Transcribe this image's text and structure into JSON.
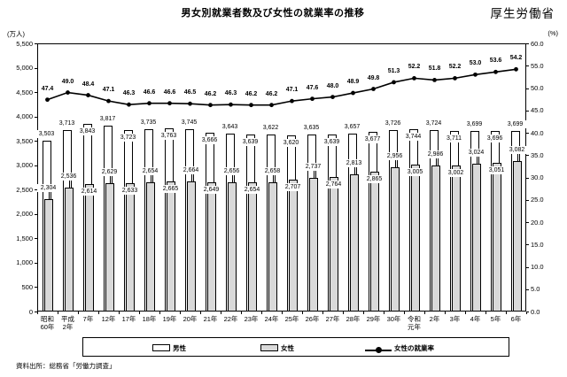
{
  "header": {
    "title": "男女別就業者数及び女性の就業率の推移",
    "agency": "厚生労働省"
  },
  "axes": {
    "left_unit": "(万人)",
    "right_unit": "(%)",
    "left_ticks": [
      "5,500",
      "5,000",
      "4,500",
      "4,000",
      "3,500",
      "3,000",
      "2,500",
      "2,000",
      "1,500",
      "1,000",
      "500",
      "0"
    ],
    "right_ticks": [
      "60.0",
      "55.0",
      "50.0",
      "45.0",
      "40.0",
      "35.0",
      "30.0",
      "25.0",
      "20.0",
      "15.0",
      "10.0",
      "5.0",
      "0.0"
    ]
  },
  "legend": {
    "male_label": "男性",
    "female_label": "女性",
    "rate_label": "女性の就業率"
  },
  "source_note": "資料出所：総務省「労働力調査」",
  "colors": {
    "male_bar": "#ffffff",
    "female_bar": "#d9d9d9",
    "line": "#000000",
    "border": "#000000"
  },
  "chart_data": {
    "type": "bar",
    "subtype": "grouped bars with overlaid line on secondary axis",
    "title": "男女別就業者数及び女性の就業率の推移",
    "categories": [
      "昭和60年",
      "平成2年",
      "7年",
      "12年",
      "17年",
      "18年",
      "19年",
      "20年",
      "21年",
      "22年",
      "23年",
      "24年",
      "25年",
      "26年",
      "27年",
      "28年",
      "29年",
      "30年",
      "令和元年",
      "2年",
      "3年",
      "4年",
      "5年",
      "6年"
    ],
    "category_label_lines": [
      [
        "昭和",
        "60年"
      ],
      [
        "平成",
        "2年"
      ],
      [
        "7年"
      ],
      [
        "12年"
      ],
      [
        "17年"
      ],
      [
        "18年"
      ],
      [
        "19年"
      ],
      [
        "20年"
      ],
      [
        "21年"
      ],
      [
        "22年"
      ],
      [
        "23年"
      ],
      [
        "24年"
      ],
      [
        "25年"
      ],
      [
        "26年"
      ],
      [
        "27年"
      ],
      [
        "28年"
      ],
      [
        "29年"
      ],
      [
        "30年"
      ],
      [
        "令和",
        "元年"
      ],
      [
        "2年"
      ],
      [
        "3年"
      ],
      [
        "4年"
      ],
      [
        "5年"
      ],
      [
        "6年"
      ]
    ],
    "series": [
      {
        "name": "男性",
        "type": "bar",
        "axis": "left",
        "color": "#ffffff",
        "values": [
          3503,
          3713,
          3843,
          3817,
          3723,
          3735,
          3763,
          3745,
          3666,
          3643,
          3639,
          3622,
          3620,
          3635,
          3639,
          3657,
          3677,
          3726,
          3744,
          3724,
          3711,
          3699,
          3696,
          3699
        ]
      },
      {
        "name": "女性",
        "type": "bar",
        "axis": "left",
        "color": "#d9d9d9",
        "values": [
          2304,
          2536,
          2614,
          2629,
          2633,
          2654,
          2665,
          2664,
          2649,
          2656,
          2654,
          2658,
          2707,
          2737,
          2764,
          2813,
          2865,
          2956,
          3005,
          2986,
          3002,
          3024,
          3051,
          3082
        ]
      },
      {
        "name": "女性の就業率",
        "type": "line",
        "axis": "right",
        "color": "#000000",
        "values": [
          47.4,
          49.0,
          48.4,
          47.1,
          46.3,
          46.6,
          46.6,
          46.5,
          46.2,
          46.3,
          46.2,
          46.2,
          47.1,
          47.6,
          48.0,
          48.9,
          49.8,
          51.3,
          52.2,
          51.8,
          52.2,
          53.0,
          53.6,
          54.2
        ]
      }
    ],
    "left_axis": {
      "label": "(万人)",
      "min": 0,
      "max": 5500,
      "step": 500
    },
    "right_axis": {
      "label": "(%)",
      "min": 0,
      "max": 60,
      "step": 5
    },
    "grid": false,
    "data_labels": true,
    "legend_position": "bottom"
  }
}
